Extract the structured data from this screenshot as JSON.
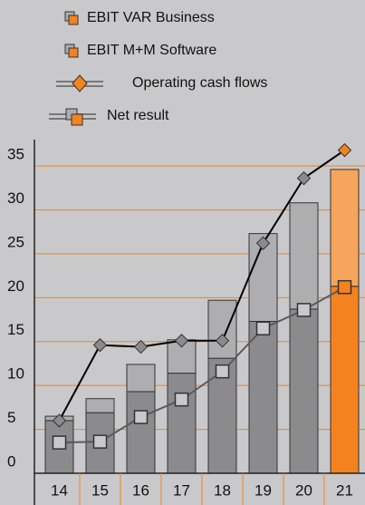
{
  "chart_data": {
    "type": "bar",
    "categories": [
      "14",
      "15",
      "16",
      "17",
      "18",
      "19",
      "20",
      "21"
    ],
    "series": [
      {
        "name": "EBIT M+M Software",
        "kind": "bar",
        "color": "#8b8b8e",
        "colors": [
          "#8b8b8e",
          "#8b8b8e",
          "#8b8b8e",
          "#8b8b8e",
          "#8b8b8e",
          "#8b8b8e",
          "#8b8b8e",
          "#f4821f"
        ],
        "values": [
          6,
          6.9,
          9.3,
          11.4,
          13.1,
          17.3,
          18.7,
          21.3
        ]
      },
      {
        "name": "EBIT VAR Business",
        "kind": "bar",
        "color": "#aeaeb1",
        "colors": [
          "#aeaeb1",
          "#aeaeb1",
          "#aeaeb1",
          "#aeaeb1",
          "#aeaeb1",
          "#aeaeb1",
          "#aeaeb1",
          "#f6a55c"
        ],
        "values": [
          0.5,
          1.6,
          3.1,
          3.8,
          6.6,
          10,
          12.1,
          13.3
        ]
      },
      {
        "name": "Operating cash flows",
        "kind": "line",
        "color": "#000000",
        "marker": "diamond",
        "marker_color": "#8b8b8e",
        "values": [
          6,
          14.6,
          14.4,
          15.1,
          15.1,
          26.2,
          33.6,
          36.8
        ]
      },
      {
        "name": "Net result",
        "kind": "line",
        "color": "#5a5a5c",
        "marker": "square",
        "marker_color": "#c9c9cb",
        "values": [
          3.5,
          3.6,
          6.4,
          8.4,
          11.6,
          16.5,
          18.6,
          21.2
        ]
      }
    ],
    "ylim": [
      0,
      38
    ],
    "yticks": [
      0,
      5,
      10,
      15,
      20,
      25,
      30,
      35
    ],
    "grid": true,
    "grid_color": "#f4821f"
  }
}
